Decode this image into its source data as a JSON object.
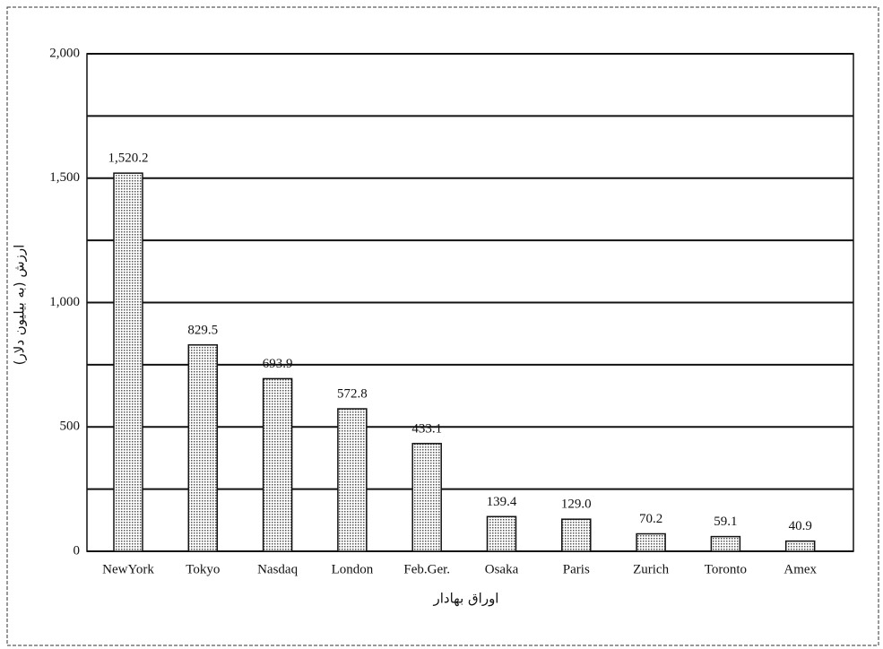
{
  "chart_data": {
    "type": "bar",
    "categories": [
      "NewYork",
      "Tokyo",
      "Nasdaq",
      "London",
      "Feb.Ger.",
      "Osaka",
      "Paris",
      "Zurich",
      "Toronto",
      "Amex"
    ],
    "values": [
      1520.2,
      829.5,
      693.9,
      572.8,
      433.1,
      139.4,
      129.0,
      70.2,
      59.1,
      40.9
    ],
    "value_labels": [
      "1,520.2",
      "829.5",
      "693.9",
      "572.8",
      "433.1",
      "139.4",
      "129.0",
      "70.2",
      "59.1",
      "40.9"
    ],
    "color": "#cfcfcf",
    "ylim": [
      0,
      2000
    ],
    "yticks": [
      0,
      500,
      {
        "value": 1000,
        "label": "1,000"
      },
      {
        "value": 1500,
        "label": "1,500"
      },
      {
        "value": 2000,
        "label": "2,000"
      }
    ],
    "minor_yticks": [
      250,
      750,
      1250,
      1750
    ],
    "grid": true,
    "x_label": "اوراق بهادار",
    "y_label": "ارزش (به بیلیون دلار)"
  }
}
